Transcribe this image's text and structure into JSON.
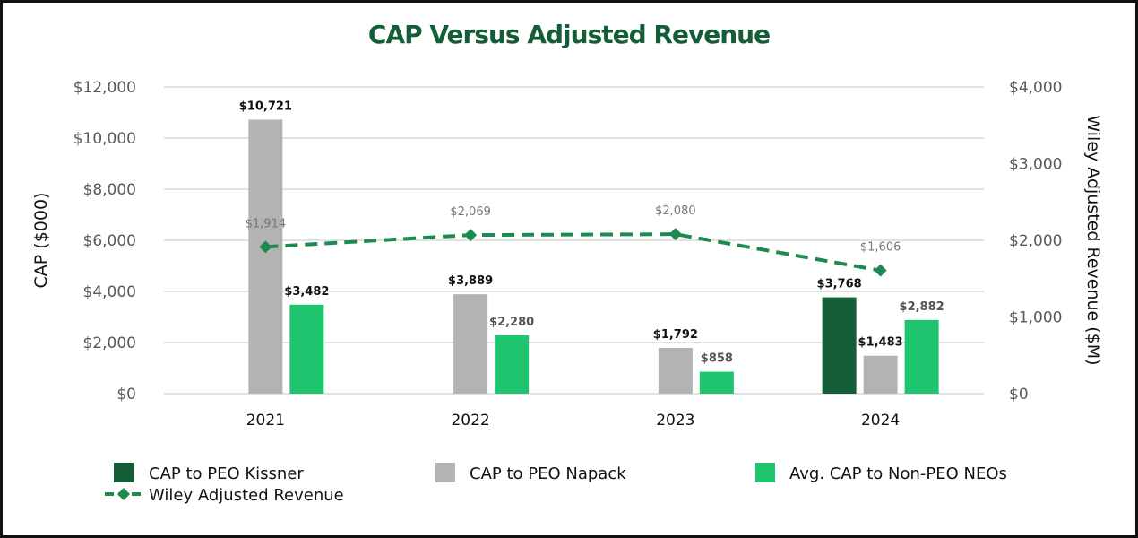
{
  "chart_data": {
    "type": "bar",
    "title": "CAP Versus Adjusted Revenue",
    "xlabel": "",
    "ylabel": "CAP ($000)",
    "y2label": "Wiley Adjusted Revenue ($M)",
    "ylim": [
      0,
      12000
    ],
    "y2lim": [
      0,
      4000
    ],
    "grid": true,
    "legend_position": "bottom",
    "categories": [
      "2021",
      "2022",
      "2023",
      "2024"
    ],
    "y_ticks": [
      "$0",
      "$2,000",
      "$4,000",
      "$6,000",
      "$8,000",
      "$10,000",
      "$12,000"
    ],
    "y_tick_values": [
      0,
      2000,
      4000,
      6000,
      8000,
      10000,
      12000
    ],
    "y2_ticks": [
      "$0",
      "$1,000",
      "$2,000",
      "$3,000",
      "$4,000"
    ],
    "y2_tick_values": [
      0,
      1000,
      2000,
      3000,
      4000
    ],
    "series": [
      {
        "name": "CAP to PEO Kissner",
        "kind": "bar",
        "axis": "left",
        "color": "#135e36",
        "values": [
          null,
          null,
          null,
          3768
        ],
        "labels": [
          "",
          "",
          "",
          "$3,768"
        ]
      },
      {
        "name": "CAP to PEO Napack",
        "kind": "bar",
        "axis": "left",
        "color": "#b3b3b3",
        "values": [
          10721,
          3889,
          1792,
          1483
        ],
        "labels": [
          "$10,721",
          "$3,889",
          "$1,792",
          "$1,483"
        ]
      },
      {
        "name": "Avg. CAP to Non-PEO NEOs",
        "kind": "bar",
        "axis": "left",
        "color": "#1ec46e",
        "values": [
          3482,
          2280,
          858,
          2882
        ],
        "labels": [
          "$3,482",
          "$2,280",
          "$858",
          "$2,882"
        ]
      },
      {
        "name": "Wiley Adjusted Revenue",
        "kind": "line",
        "axis": "right",
        "style": "dashed",
        "marker": "diamond",
        "color": "#1e8a4f",
        "values": [
          1914,
          2069,
          2080,
          1606
        ],
        "labels": [
          "$1,914",
          "$2,069",
          "$2,080",
          "$1,606"
        ]
      }
    ]
  }
}
